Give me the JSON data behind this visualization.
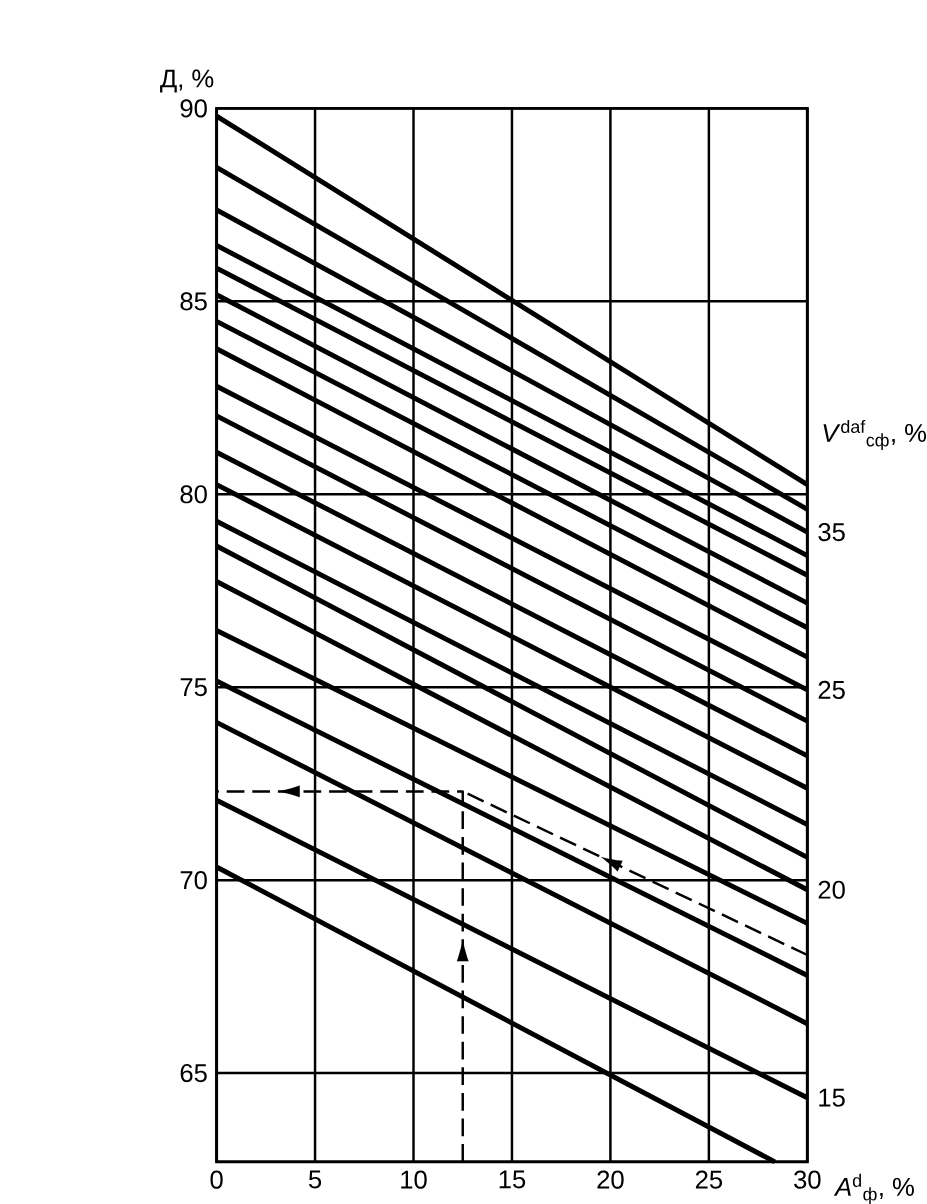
{
  "chart_data": {
    "type": "line",
    "ylabel": "Д, %",
    "xlabel": "*A*$^{d}$$_{ф}$, %",
    "annotations": [
      "*V*$^{daf}$$_{сф}$, %"
    ],
    "xlim": [
      0,
      30
    ],
    "ylim": [
      62.7,
      90
    ],
    "xticks": [
      0,
      5,
      10,
      15,
      20,
      25,
      30
    ],
    "yticks": [
      65,
      70,
      75,
      80,
      85,
      90
    ],
    "grid": true,
    "series": [
      {
        "color": "#000000",
        "x": [
          0,
          30
        ],
        "values": [
          89.8,
          80.25
        ]
      },
      {
        "color": "#000000",
        "x": [
          0,
          30
        ],
        "values": [
          88.47,
          79.61
        ]
      },
      {
        "name": "35",
        "color": "#000000",
        "x": [
          0,
          30
        ],
        "values": [
          87.37,
          79.02
        ]
      },
      {
        "color": "#000000",
        "x": [
          0,
          30
        ],
        "values": [
          86.45,
          78.41
        ]
      },
      {
        "color": "#000000",
        "x": [
          0,
          30
        ],
        "values": [
          85.86,
          77.9
        ]
      },
      {
        "color": "#000000",
        "x": [
          0,
          30
        ],
        "values": [
          85.17,
          77.18
        ]
      },
      {
        "color": "#000000",
        "x": [
          0,
          30
        ],
        "values": [
          84.48,
          76.54
        ]
      },
      {
        "color": "#000000",
        "x": [
          0,
          30
        ],
        "values": [
          83.77,
          75.78
        ]
      },
      {
        "name": "25",
        "color": "#000000",
        "x": [
          0,
          30
        ],
        "values": [
          82.8,
          74.93
        ]
      },
      {
        "color": "#000000",
        "x": [
          0,
          30
        ],
        "values": [
          82.03,
          74.12
        ]
      },
      {
        "color": "#000000",
        "x": [
          0,
          30
        ],
        "values": [
          81.09,
          73.22
        ]
      },
      {
        "color": "#000000",
        "x": [
          0,
          30
        ],
        "values": [
          80.25,
          72.38
        ]
      },
      {
        "color": "#000000",
        "x": [
          0,
          30
        ],
        "values": [
          79.3,
          71.44
        ]
      },
      {
        "color": "#000000",
        "x": [
          0,
          30
        ],
        "values": [
          78.66,
          70.59
        ]
      },
      {
        "name": "20",
        "color": "#000000",
        "x": [
          0,
          30
        ],
        "values": [
          77.74,
          69.75
        ]
      },
      {
        "color": "#000000",
        "x": [
          0,
          30
        ],
        "values": [
          76.47,
          68.88
        ]
      },
      {
        "color": "#000000",
        "x": [
          0,
          30
        ],
        "values": [
          75.16,
          67.53
        ]
      },
      {
        "color": "#000000",
        "x": [
          0,
          30
        ],
        "values": [
          74.09,
          66.28
        ]
      },
      {
        "name": "15",
        "color": "#000000",
        "x": [
          0,
          30
        ],
        "values": [
          72.07,
          64.36
        ]
      },
      {
        "color": "#000000",
        "x": [
          0,
          28.35
        ],
        "values": [
          70.34,
          62.7
        ]
      },
      {
        "color": "#000000",
        "line_style": "dashed",
        "x": [
          12.5,
          12.5,
          0,
          null,
          30,
          12.5
        ],
        "values": [
          62.7,
          72.3,
          72.3,
          null,
          68.06,
          72.3
        ]
      }
    ]
  }
}
